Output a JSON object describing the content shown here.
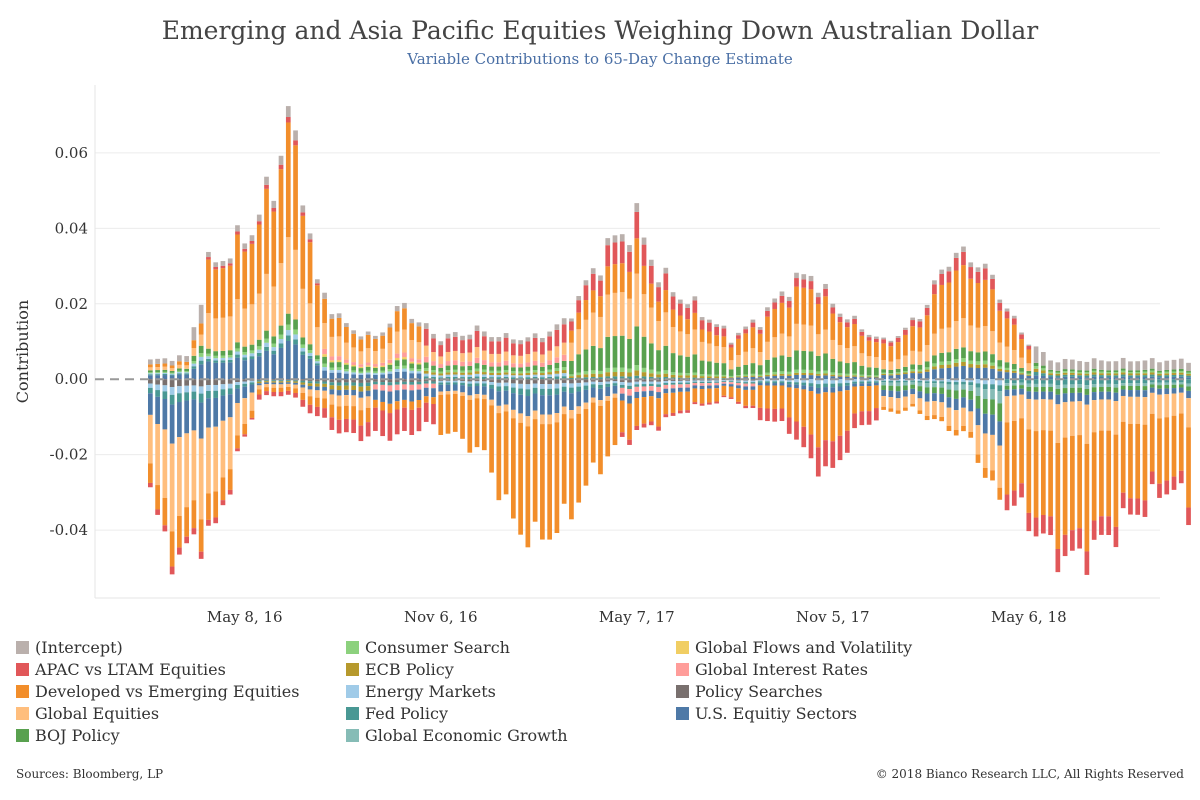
{
  "title": "Emerging and Asia Pacific Equities Weighing Down Australian Dollar",
  "subtitle": "Variable Contributions to 65-Day Change Estimate",
  "footer": {
    "source": "Sources: Bloomberg, LP",
    "copyright": "© 2018 Bianco Research LLC,  All Rights Reserved"
  },
  "chart_data": {
    "type": "bar",
    "stacked": true,
    "ylabel": "Contribution",
    "ylim": [
      -0.058,
      0.078
    ],
    "yticks": [
      -0.04,
      -0.02,
      0.0,
      0.02,
      0.04,
      0.06
    ],
    "ytick_labels": [
      "-0.04",
      "-0.02",
      "0.00",
      "0.02",
      "0.04",
      "0.06"
    ],
    "xtick_labels": [
      "May 8, 16",
      "Nov 6, 16",
      "May 7, 17",
      "Nov 5, 17",
      "May 6, 18"
    ],
    "xtick_bar_index": [
      13,
      40,
      67,
      94,
      121
    ],
    "bar_count": 144,
    "grid": true,
    "zero_line": "dashed",
    "legend_position": "bottom",
    "series": [
      {
        "name": "(Intercept)",
        "color": "#bab0ac"
      },
      {
        "name": "APAC vs LTAM Equities",
        "color": "#e15759"
      },
      {
        "name": "Developed vs Emerging Equities",
        "color": "#f28e2b"
      },
      {
        "name": "Global Equities",
        "color": "#ffbe7d"
      },
      {
        "name": "BOJ Policy",
        "color": "#59a14f"
      },
      {
        "name": "Consumer Search",
        "color": "#8cd17d"
      },
      {
        "name": "ECB Policy",
        "color": "#b6992d"
      },
      {
        "name": "Energy Markets",
        "color": "#a0cbe8"
      },
      {
        "name": "Fed Policy",
        "color": "#499894"
      },
      {
        "name": "Global Economic Growth",
        "color": "#86bcb6"
      },
      {
        "name": "Global Flows and Volatility",
        "color": "#f1ce63"
      },
      {
        "name": "Global Interest Rates",
        "color": "#ff9d9a"
      },
      {
        "name": "Policy Searches",
        "color": "#79706e"
      },
      {
        "name": "U.S. Equitiy Sectors",
        "color": "#4e79a7"
      }
    ],
    "positive_total_keypoints": [
      [
        0,
        0.005
      ],
      [
        5,
        0.006
      ],
      [
        8,
        0.03
      ],
      [
        11,
        0.034
      ],
      [
        14,
        0.04
      ],
      [
        17,
        0.052
      ],
      [
        19,
        0.07
      ],
      [
        21,
        0.052
      ],
      [
        23,
        0.025
      ],
      [
        27,
        0.014
      ],
      [
        31,
        0.011
      ],
      [
        35,
        0.02
      ],
      [
        37,
        0.015
      ],
      [
        40,
        0.011
      ],
      [
        45,
        0.013
      ],
      [
        49,
        0.011
      ],
      [
        53,
        0.011
      ],
      [
        57,
        0.015
      ],
      [
        60,
        0.025
      ],
      [
        63,
        0.035
      ],
      [
        67,
        0.042
      ],
      [
        70,
        0.028
      ],
      [
        73,
        0.022
      ],
      [
        76,
        0.018
      ],
      [
        80,
        0.011
      ],
      [
        84,
        0.016
      ],
      [
        88,
        0.025
      ],
      [
        91,
        0.028
      ],
      [
        94,
        0.02
      ],
      [
        97,
        0.015
      ],
      [
        101,
        0.01
      ],
      [
        104,
        0.013
      ],
      [
        107,
        0.02
      ],
      [
        110,
        0.033
      ],
      [
        114,
        0.032
      ],
      [
        117,
        0.023
      ],
      [
        120,
        0.012
      ],
      [
        124,
        0.005
      ],
      [
        130,
        0.005
      ],
      [
        143,
        0.005
      ]
    ],
    "negative_total_keypoints": [
      [
        0,
        -0.028
      ],
      [
        2,
        -0.045
      ],
      [
        4,
        -0.047
      ],
      [
        7,
        -0.042
      ],
      [
        9,
        -0.04
      ],
      [
        12,
        -0.021
      ],
      [
        15,
        -0.005
      ],
      [
        19,
        -0.004
      ],
      [
        23,
        -0.01
      ],
      [
        27,
        -0.015
      ],
      [
        31,
        -0.015
      ],
      [
        35,
        -0.015
      ],
      [
        38,
        -0.012
      ],
      [
        42,
        -0.015
      ],
      [
        46,
        -0.02
      ],
      [
        50,
        -0.038
      ],
      [
        53,
        -0.043
      ],
      [
        57,
        -0.038
      ],
      [
        61,
        -0.025
      ],
      [
        64,
        -0.018
      ],
      [
        67,
        -0.014
      ],
      [
        70,
        -0.012
      ],
      [
        74,
        -0.008
      ],
      [
        80,
        -0.005
      ],
      [
        84,
        -0.01
      ],
      [
        88,
        -0.013
      ],
      [
        91,
        -0.022
      ],
      [
        94,
        -0.025
      ],
      [
        97,
        -0.014
      ],
      [
        101,
        -0.009
      ],
      [
        105,
        -0.008
      ],
      [
        109,
        -0.012
      ],
      [
        113,
        -0.016
      ],
      [
        116,
        -0.03
      ],
      [
        120,
        -0.035
      ],
      [
        124,
        -0.045
      ],
      [
        127,
        -0.048
      ],
      [
        130,
        -0.045
      ],
      [
        134,
        -0.038
      ],
      [
        138,
        -0.032
      ],
      [
        141,
        -0.028
      ],
      [
        143,
        -0.036
      ]
    ]
  }
}
